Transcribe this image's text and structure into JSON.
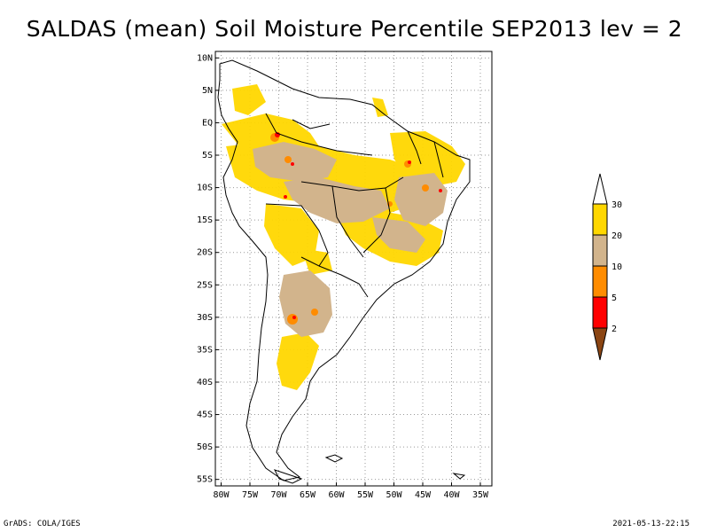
{
  "title": "SALDAS (mean) Soil Moisture Percentile SEP2013 lev = 2",
  "map": {
    "lat_labels": [
      "10N",
      "5N",
      "EQ",
      "5S",
      "10S",
      "15S",
      "20S",
      "25S",
      "30S",
      "35S",
      "40S",
      "45S",
      "50S",
      "55S"
    ],
    "lon_labels": [
      "80W",
      "75W",
      "70W",
      "65W",
      "60W",
      "55W",
      "50W",
      "45W",
      "40W",
      "35W"
    ],
    "lat_range": [
      -56,
      11
    ],
    "lon_range": [
      -81,
      -33
    ]
  },
  "legend": {
    "levels": [
      "30",
      "20",
      "10",
      "5",
      "2"
    ],
    "colors": {
      "above_30": "#ffffff",
      "20_30": "#ffd700",
      "10_20": "#d2b48c",
      "5_10": "#ff8c00",
      "2_5": "#ff0000",
      "below_2": "#8b4513"
    }
  },
  "colors": {
    "yellow": "#ffd700",
    "tan": "#d2b48c",
    "orange": "#ff8c00",
    "red": "#ff0000"
  },
  "footer": {
    "left": "GrADS: COLA/IGES",
    "right": "2021-05-13-22:15"
  }
}
